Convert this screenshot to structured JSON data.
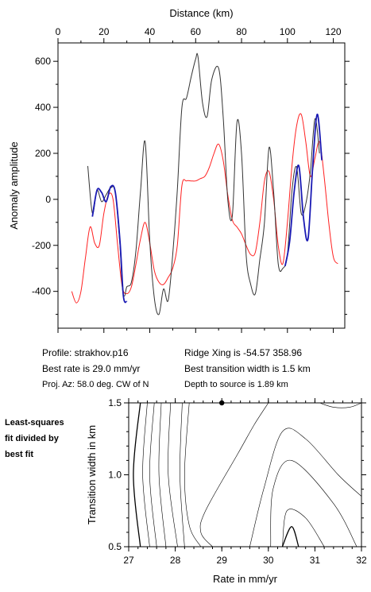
{
  "info": {
    "profile": "Profile: strakhov.p16",
    "ridge_xing": "Ridge Xing is -54.57 358.96",
    "best_rate": "Best rate is 29.0 mm/yr",
    "best_width": "Best transition width is 1.5 km",
    "proj_az": "Proj. Az: 58.0 deg. CW of N",
    "depth": "Depth to source is   1.89 km"
  },
  "side_note": [
    "Least-squares",
    "fit divided by",
    "best fit"
  ],
  "chart_data": [
    {
      "type": "line",
      "xlabel": "Distance (km)",
      "ylabel": "Anomaly amplitude",
      "xlim": [
        0,
        125
      ],
      "ylim": [
        -560,
        680
      ],
      "x_ticks": [
        0,
        20,
        40,
        60,
        80,
        100,
        120
      ],
      "y_ticks": [
        -400,
        -200,
        0,
        200,
        400,
        600
      ],
      "x_axis_position": "top",
      "grid": false,
      "colors": {
        "observed": "#333333",
        "highlight": "#1a1ab4",
        "model": "#ff2020"
      },
      "series": [
        {
          "role": "observed",
          "color": "#333333",
          "x": [
            13,
            15,
            17,
            19,
            21,
            23,
            25,
            27,
            28,
            29,
            30,
            32,
            34,
            36,
            38,
            40,
            42,
            44,
            46,
            48,
            50,
            52,
            54,
            56,
            58,
            60,
            61,
            63,
            65,
            67,
            70,
            72,
            74,
            76,
            78,
            80,
            82,
            84,
            86,
            88,
            90,
            92,
            94,
            96,
            98,
            100,
            102,
            104,
            106,
            108,
            110,
            112,
            114
          ],
          "y": [
            145,
            -60,
            40,
            -10,
            20,
            50,
            30,
            -200,
            -380,
            -420,
            -380,
            -360,
            -220,
            40,
            250,
            -180,
            -430,
            -500,
            -390,
            -440,
            -240,
            40,
            400,
            440,
            530,
            610,
            620,
            420,
            360,
            520,
            570,
            360,
            0,
            -70,
            335,
            200,
            -240,
            -370,
            -410,
            -260,
            -100,
            225,
            30,
            -280,
            -300,
            -240,
            40,
            140,
            -60,
            -20,
            120,
            350,
            200
          ]
        },
        {
          "role": "observed-highlight",
          "color": "#1a1ab4",
          "x": [
            15,
            17,
            19,
            21,
            23,
            25,
            27,
            28.5,
            30
          ],
          "y": [
            -75,
            40,
            30,
            -10,
            55,
            30,
            -180,
            -420,
            -445
          ]
        },
        {
          "role": "observed-highlight",
          "color": "#1a1ab4",
          "x": [
            99,
            101,
            103,
            105,
            107,
            109,
            111,
            113,
            115
          ],
          "y": [
            -290,
            -180,
            40,
            145,
            -80,
            -170,
            140,
            370,
            170
          ]
        },
        {
          "role": "model",
          "color": "#ff2020",
          "x": [
            6,
            8,
            10,
            12,
            14,
            16,
            18,
            20,
            22,
            24,
            26,
            28,
            30,
            32,
            34,
            36,
            38,
            40,
            42,
            44,
            46,
            48,
            50,
            52,
            54,
            56,
            58,
            60,
            62,
            64,
            66,
            68,
            70,
            72,
            74,
            76,
            78,
            80,
            82,
            84,
            86,
            88,
            90,
            92,
            94,
            96,
            98,
            100,
            102,
            104,
            106,
            108,
            110,
            112,
            114,
            116,
            118,
            120,
            122
          ],
          "y": [
            -400,
            -450,
            -400,
            -250,
            -120,
            -190,
            -200,
            -60,
            20,
            0,
            -200,
            -380,
            -410,
            -380,
            -280,
            -170,
            -100,
            -190,
            -310,
            -360,
            -370,
            -340,
            -300,
            -200,
            60,
            80,
            80,
            80,
            90,
            100,
            140,
            200,
            240,
            170,
            20,
            -90,
            -120,
            -150,
            -200,
            -240,
            -230,
            -100,
            80,
            120,
            0,
            -200,
            -280,
            -100,
            150,
            320,
            370,
            250,
            100,
            180,
            250,
            100,
            -100,
            -250,
            -280
          ]
        }
      ]
    },
    {
      "type": "contour",
      "xlabel": "Rate in mm/yr",
      "ylabel": "Transition width in km",
      "xlim": [
        27,
        32
      ],
      "ylim": [
        0.5,
        1.5
      ],
      "x_ticks": [
        27,
        28,
        29,
        30,
        31,
        32
      ],
      "y_ticks": [
        0.5,
        1.0,
        1.5
      ],
      "grid": false,
      "best_fit_point": {
        "x": 29.0,
        "y": 1.5
      },
      "contours": [
        {
          "level": 6,
          "bold": true,
          "points": [
            [
              27.25,
              0.5
            ],
            [
              27.1,
              1.0
            ],
            [
              27.25,
              1.5
            ]
          ]
        },
        {
          "level": 5,
          "bold": false,
          "points": [
            [
              27.45,
              0.5
            ],
            [
              27.3,
              1.0
            ],
            [
              27.4,
              1.5
            ]
          ]
        },
        {
          "level": 4,
          "bold": false,
          "points": [
            [
              27.6,
              0.5
            ],
            [
              27.45,
              1.0
            ],
            [
              27.55,
              1.5
            ]
          ]
        },
        {
          "level": 3,
          "bold": false,
          "points": [
            [
              27.8,
              0.5
            ],
            [
              27.65,
              1.0
            ],
            [
              27.7,
              1.5
            ]
          ]
        },
        {
          "level": 2,
          "bold": false,
          "points": [
            [
              28.05,
              0.5
            ],
            [
              27.85,
              1.0
            ],
            [
              27.9,
              1.5
            ]
          ]
        },
        {
          "level": 1.5,
          "bold": false,
          "points": [
            [
              28.2,
              0.5
            ],
            [
              28.1,
              1.0
            ],
            [
              28.15,
              1.5
            ]
          ]
        },
        {
          "level": 1.2,
          "bold": false,
          "points": [
            [
              28.55,
              0.5
            ],
            [
              28.3,
              0.65
            ],
            [
              28.2,
              1.0
            ],
            [
              28.3,
              1.5
            ]
          ]
        },
        {
          "level": 1.1,
          "bold": false,
          "points": [
            [
              28.8,
              0.5
            ],
            [
              28.55,
              0.6
            ],
            [
              28.65,
              0.75
            ],
            [
              29.35,
              1.15
            ],
            [
              29.7,
              1.35
            ],
            [
              30.0,
              1.5
            ]
          ]
        },
        {
          "level": 1.1,
          "bold": false,
          "points": [
            [
              29.6,
              0.5
            ],
            [
              29.9,
              0.9
            ],
            [
              30.3,
              1.3
            ],
            [
              30.8,
              1.25
            ],
            [
              31.5,
              1.0
            ],
            [
              32.0,
              0.85
            ]
          ]
        },
        {
          "level": 1.2,
          "bold": false,
          "points": [
            [
              30.05,
              0.5
            ],
            [
              30.1,
              0.9
            ],
            [
              30.5,
              1.1
            ],
            [
              31.4,
              0.8
            ],
            [
              31.9,
              0.5
            ]
          ]
        },
        {
          "level": 1.5,
          "bold": false,
          "points": [
            [
              30.3,
              0.5
            ],
            [
              30.4,
              0.75
            ],
            [
              30.8,
              0.7
            ],
            [
              31.2,
              0.5
            ]
          ]
        },
        {
          "level": 2,
          "bold": true,
          "points": [
            [
              30.3,
              0.5
            ],
            [
              30.5,
              0.64
            ],
            [
              30.65,
              0.5
            ]
          ]
        },
        {
          "level": 1.1,
          "bold": false,
          "points": [
            [
              31.1,
              1.5
            ],
            [
              31.4,
              1.47
            ],
            [
              31.75,
              1.47
            ],
            [
              32.0,
              1.5
            ]
          ]
        }
      ]
    }
  ]
}
